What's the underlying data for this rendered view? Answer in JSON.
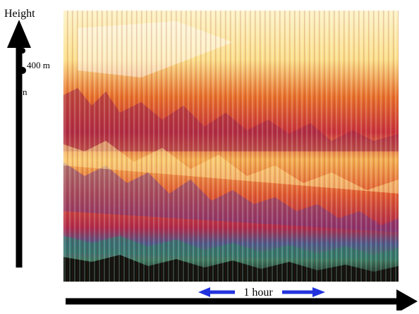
{
  "labels": {
    "y_axis": "Height",
    "tick_upper": "400 m",
    "tick_lower": "n",
    "x_scale": "1 hour"
  }
}
